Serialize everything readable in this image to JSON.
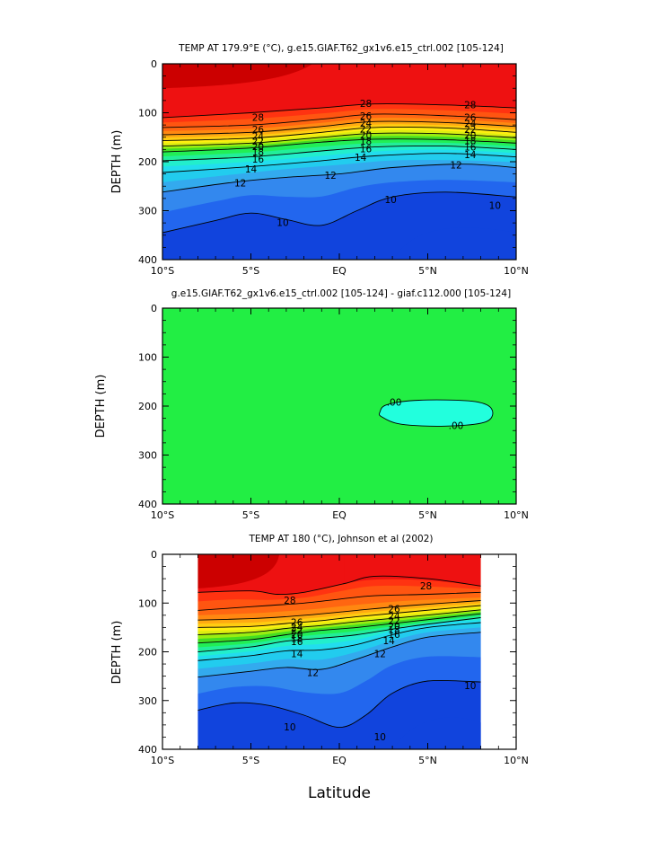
{
  "figure": {
    "xlabel": "Latitude",
    "ylabel": "DEPTH (m)",
    "x_ticks": [
      "10°S",
      "5°S",
      "EQ",
      "5°N",
      "10°N"
    ],
    "y_ticks": [
      "0",
      "100",
      "200",
      "300",
      "400"
    ]
  },
  "chart_data": [
    {
      "type": "heatmap",
      "title": "TEMP AT 179.9°E (°C), g.e15.GIAF.T62_gx1v6.e15_ctrl.002 [105-124]",
      "xlabel": "",
      "ylabel": "DEPTH (m)",
      "xlim": [
        -10,
        10
      ],
      "ylim": [
        400,
        0
      ],
      "lat_range": [
        -10,
        10
      ],
      "x_tick_values": [
        -10,
        -5,
        0,
        5,
        10
      ],
      "y_tick_values": [
        0,
        100,
        200,
        300,
        400
      ],
      "variable_units": "°C",
      "contour_lines": [
        {
          "level": 28,
          "points": [
            [
              -10,
              110
            ],
            [
              -5,
              100
            ],
            [
              -1,
              90
            ],
            [
              2,
              82
            ],
            [
              6,
              84
            ],
            [
              10,
              90
            ]
          ]
        },
        {
          "level": 26,
          "points": [
            [
              -10,
              130
            ],
            [
              -5,
              125
            ],
            [
              -1,
              113
            ],
            [
              2,
              103
            ],
            [
              6,
              106
            ],
            [
              10,
              114
            ]
          ]
        },
        {
          "level": 24,
          "points": [
            [
              -10,
              145
            ],
            [
              -5,
              140
            ],
            [
              -1,
              128
            ],
            [
              2,
              118
            ],
            [
              6,
              120
            ],
            [
              10,
              128
            ]
          ]
        },
        {
          "level": 22,
          "points": [
            [
              -10,
              157
            ],
            [
              -5,
              152
            ],
            [
              -1,
              140
            ],
            [
              2,
              130
            ],
            [
              6,
              131
            ],
            [
              10,
              140
            ]
          ]
        },
        {
          "level": 20,
          "points": [
            [
              -10,
              168
            ],
            [
              -5,
              162
            ],
            [
              -1,
              150
            ],
            [
              2,
              142
            ],
            [
              6,
              143
            ],
            [
              10,
              151
            ]
          ]
        },
        {
          "level": 18,
          "points": [
            [
              -10,
              180
            ],
            [
              -5,
              172
            ],
            [
              -1,
              160
            ],
            [
              2,
              154
            ],
            [
              6,
              155
            ],
            [
              10,
              162
            ]
          ]
        },
        {
          "level": 16,
          "points": [
            [
              -10,
              198
            ],
            [
              -5,
              190
            ],
            [
              -1,
              178
            ],
            [
              2,
              170
            ],
            [
              6,
              168
            ],
            [
              10,
              175
            ]
          ]
        },
        {
          "level": 14,
          "points": [
            [
              -10,
              222
            ],
            [
              -5,
              210
            ],
            [
              -1,
              198
            ],
            [
              2,
              188
            ],
            [
              6,
              183
            ],
            [
              10,
              190
            ]
          ]
        },
        {
          "level": 12,
          "points": [
            [
              -10,
              262
            ],
            [
              -6,
              242
            ],
            [
              -3,
              232
            ],
            [
              0,
              225
            ],
            [
              3,
              212
            ],
            [
              7,
              205
            ],
            [
              10,
              212
            ]
          ]
        },
        {
          "level": 10,
          "points": [
            [
              -10,
              345
            ],
            [
              -7,
              320
            ],
            [
              -5,
              305
            ],
            [
              -3,
              318
            ],
            [
              -1,
              330
            ],
            [
              1,
              300
            ],
            [
              3,
              272
            ],
            [
              6,
              262
            ],
            [
              10,
              272
            ]
          ]
        }
      ],
      "label_positions": [
        {
          "text": "28",
          "lat": 1.5,
          "depth": 82
        },
        {
          "text": "28",
          "lat": 7.4,
          "depth": 84
        },
        {
          "text": "28",
          "lat": -4.6,
          "depth": 110
        },
        {
          "text": "26",
          "lat": 1.5,
          "depth": 107
        },
        {
          "text": "26",
          "lat": 7.4,
          "depth": 110
        },
        {
          "text": "26",
          "lat": -4.6,
          "depth": 135
        },
        {
          "text": "24",
          "lat": 1.5,
          "depth": 122
        },
        {
          "text": "24",
          "lat": 7.4,
          "depth": 123
        },
        {
          "text": "24",
          "lat": -4.6,
          "depth": 149
        },
        {
          "text": "22",
          "lat": 1.5,
          "depth": 134
        },
        {
          "text": "22",
          "lat": 7.4,
          "depth": 135
        },
        {
          "text": "22",
          "lat": -4.6,
          "depth": 159
        },
        {
          "text": "20",
          "lat": 1.5,
          "depth": 147
        },
        {
          "text": "20",
          "lat": 7.4,
          "depth": 147
        },
        {
          "text": "20",
          "lat": -4.6,
          "depth": 170
        },
        {
          "text": "18",
          "lat": 1.5,
          "depth": 159
        },
        {
          "text": "18",
          "lat": 7.4,
          "depth": 158
        },
        {
          "text": "18",
          "lat": -4.6,
          "depth": 181
        },
        {
          "text": "16",
          "lat": 1.5,
          "depth": 174
        },
        {
          "text": "16",
          "lat": 7.4,
          "depth": 171
        },
        {
          "text": "16",
          "lat": -4.6,
          "depth": 195
        },
        {
          "text": "14",
          "lat": 1.2,
          "depth": 192
        },
        {
          "text": "14",
          "lat": 7.4,
          "depth": 186
        },
        {
          "text": "14",
          "lat": -5.0,
          "depth": 216
        },
        {
          "text": "12",
          "lat": -5.6,
          "depth": 244
        },
        {
          "text": "12",
          "lat": -0.5,
          "depth": 228
        },
        {
          "text": "12",
          "lat": 6.6,
          "depth": 207
        },
        {
          "text": "10",
          "lat": 2.9,
          "depth": 278
        },
        {
          "text": "10",
          "lat": 8.8,
          "depth": 290
        },
        {
          "text": "10",
          "lat": -3.2,
          "depth": 325
        }
      ]
    },
    {
      "type": "heatmap",
      "title": "g.e15.GIAF.T62_gx1v6.e15_ctrl.002 [105-124] - giaf.c112.000 [105-124]",
      "xlabel": "",
      "ylabel": "DEPTH (m)",
      "xlim": [
        -10,
        10
      ],
      "ylim": [
        400,
        0
      ],
      "x_tick_values": [
        -10,
        -5,
        0,
        5,
        10
      ],
      "y_tick_values": [
        0,
        100,
        200,
        300,
        400
      ],
      "background_value": 0.0,
      "colors": {
        "background": "#22ee44",
        "anomaly": "#22ffdd"
      },
      "anomaly_region": {
        "lat_range": [
          2.3,
          8.6
        ],
        "depth_range": [
          185,
          242
        ]
      },
      "contour_lines": [
        {
          "level": 0.0,
          "points": [
            [
              2.3,
              212
            ],
            [
              2.7,
              197
            ],
            [
              4.5,
              188
            ],
            [
              7.5,
              190
            ],
            [
              8.6,
              205
            ],
            [
              8.3,
              232
            ],
            [
              6,
              241
            ],
            [
              3.5,
              237
            ],
            [
              2.4,
              222
            ]
          ]
        }
      ],
      "label_positions": [
        {
          "text": ".00",
          "lat": 3.1,
          "depth": 193
        },
        {
          "text": ".00",
          "lat": 6.6,
          "depth": 240
        }
      ]
    },
    {
      "type": "heatmap",
      "title": "TEMP AT 180 (°C), Johnson et al (2002)",
      "xlabel": "Latitude",
      "ylabel": "DEPTH (m)",
      "xlim": [
        -10,
        10
      ],
      "ylim": [
        400,
        0
      ],
      "data_lat_range": [
        -8,
        8
      ],
      "x_tick_values": [
        -10,
        -5,
        0,
        5,
        10
      ],
      "y_tick_values": [
        0,
        100,
        200,
        300,
        400
      ],
      "variable_units": "°C",
      "contour_lines": [
        {
          "level": 28,
          "points": [
            [
              -8,
              78
            ],
            [
              -5,
              75
            ],
            [
              -3.5,
              82
            ],
            [
              -2,
              78
            ],
            [
              0.3,
              60
            ],
            [
              2,
              45
            ],
            [
              5,
              50
            ],
            [
              8,
              65
            ]
          ]
        },
        {
          "level": 26,
          "points": [
            [
              -8,
              115
            ],
            [
              -6,
              110
            ],
            [
              -4,
              105
            ],
            [
              -2,
              100
            ],
            [
              0,
              92
            ],
            [
              2,
              85
            ],
            [
              5,
              82
            ],
            [
              8,
              78
            ]
          ]
        },
        {
          "level": 24,
          "points": [
            [
              -8,
              135
            ],
            [
              -5,
              132
            ],
            [
              -3,
              128
            ],
            [
              -1,
              122
            ],
            [
              1,
              115
            ],
            [
              4,
              105
            ],
            [
              8,
              95
            ]
          ]
        },
        {
          "level": 22,
          "points": [
            [
              -8,
              150
            ],
            [
              -5,
              148
            ],
            [
              -3,
              142
            ],
            [
              -1,
              136
            ],
            [
              1,
              128
            ],
            [
              4,
              118
            ],
            [
              8,
              105
            ]
          ]
        },
        {
          "level": 20,
          "points": [
            [
              -8,
              165
            ],
            [
              -5,
              160
            ],
            [
              -3,
              152
            ],
            [
              -1,
              146
            ],
            [
              1,
              138
            ],
            [
              4,
              128
            ],
            [
              8,
              114
            ]
          ]
        },
        {
          "level": 18,
          "points": [
            [
              -8,
              182
            ],
            [
              -5,
              175
            ],
            [
              -3,
              165
            ],
            [
              -1,
              156
            ],
            [
              1,
              150
            ],
            [
              4,
              138
            ],
            [
              8,
              122
            ]
          ]
        },
        {
          "level": 16,
          "points": [
            [
              -8,
              200
            ],
            [
              -5,
              190
            ],
            [
              -3,
              178
            ],
            [
              -1,
              172
            ],
            [
              1,
              165
            ],
            [
              4,
              148
            ],
            [
              8,
              130
            ]
          ]
        },
        {
          "level": 14,
          "points": [
            [
              -8,
              218
            ],
            [
              -5,
              208
            ],
            [
              -3,
              198
            ],
            [
              -1,
              196
            ],
            [
              1,
              185
            ],
            [
              3,
              165
            ],
            [
              5,
              150
            ],
            [
              8,
              140
            ]
          ]
        },
        {
          "level": 12,
          "points": [
            [
              -8,
              252
            ],
            [
              -5,
              240
            ],
            [
              -3,
              232
            ],
            [
              -1,
              236
            ],
            [
              1,
              215
            ],
            [
              3,
              190
            ],
            [
              5,
              170
            ],
            [
              8,
              160
            ]
          ]
        },
        {
          "level": 10,
          "points": [
            [
              -8,
              320
            ],
            [
              -6,
              305
            ],
            [
              -4,
              310
            ],
            [
              -2,
              330
            ],
            [
              0,
              355
            ],
            [
              1.5,
              330
            ],
            [
              3,
              285
            ],
            [
              5,
              260
            ],
            [
              8,
              262
            ]
          ]
        }
      ],
      "label_positions": [
        {
          "text": "28",
          "lat": 4.9,
          "depth": 65
        },
        {
          "text": "28",
          "lat": -2.8,
          "depth": 95
        },
        {
          "text": "26",
          "lat": 3.1,
          "depth": 112
        },
        {
          "text": "26",
          "lat": -2.4,
          "depth": 140
        },
        {
          "text": "24",
          "lat": 3.1,
          "depth": 127
        },
        {
          "text": "24",
          "lat": -2.4,
          "depth": 150
        },
        {
          "text": "22",
          "lat": 3.1,
          "depth": 137
        },
        {
          "text": "22",
          "lat": -2.4,
          "depth": 157
        },
        {
          "text": "20",
          "lat": 3.1,
          "depth": 148
        },
        {
          "text": "20",
          "lat": -2.4,
          "depth": 165
        },
        {
          "text": "18",
          "lat": 3.1,
          "depth": 156
        },
        {
          "text": "18",
          "lat": -2.4,
          "depth": 173
        },
        {
          "text": "16",
          "lat": 3.1,
          "depth": 165
        },
        {
          "text": "16",
          "lat": -2.4,
          "depth": 180
        },
        {
          "text": "14",
          "lat": 2.8,
          "depth": 178
        },
        {
          "text": "14",
          "lat": -2.4,
          "depth": 205
        },
        {
          "text": "12",
          "lat": 2.3,
          "depth": 205
        },
        {
          "text": "12",
          "lat": -1.5,
          "depth": 243
        },
        {
          "text": "10",
          "lat": 7.4,
          "depth": 270
        },
        {
          "text": "10",
          "lat": 2.3,
          "depth": 375
        },
        {
          "text": "10",
          "lat": -2.8,
          "depth": 355
        }
      ]
    }
  ],
  "colormap": [
    {
      "level": 0,
      "color": "#0022cc"
    },
    {
      "level": 8,
      "color": "#1144dd"
    },
    {
      "level": 10,
      "color": "#2266ee"
    },
    {
      "level": 11,
      "color": "#3388ee"
    },
    {
      "level": 12,
      "color": "#33aaee"
    },
    {
      "level": 13,
      "color": "#22ccee"
    },
    {
      "level": 14,
      "color": "#22ddee"
    },
    {
      "level": 15,
      "color": "#22eecc"
    },
    {
      "level": 16,
      "color": "#22ee99"
    },
    {
      "level": 17,
      "color": "#22ee55"
    },
    {
      "level": 18,
      "color": "#44dd22"
    },
    {
      "level": 19,
      "color": "#99ee11"
    },
    {
      "level": 20,
      "color": "#ddee11"
    },
    {
      "level": 21,
      "color": "#ffee11"
    },
    {
      "level": 22,
      "color": "#ffcc11"
    },
    {
      "level": 23,
      "color": "#ffaa11"
    },
    {
      "level": 24,
      "color": "#ff8811"
    },
    {
      "level": 25,
      "color": "#ff6611"
    },
    {
      "level": 26,
      "color": "#ff5511"
    },
    {
      "level": 27,
      "color": "#ff3311"
    },
    {
      "level": 28,
      "color": "#ee1111"
    },
    {
      "level": 29,
      "color": "#cc0000"
    }
  ],
  "colors": {
    "missing_data": "#ffffff",
    "contour_line": "#000000"
  }
}
